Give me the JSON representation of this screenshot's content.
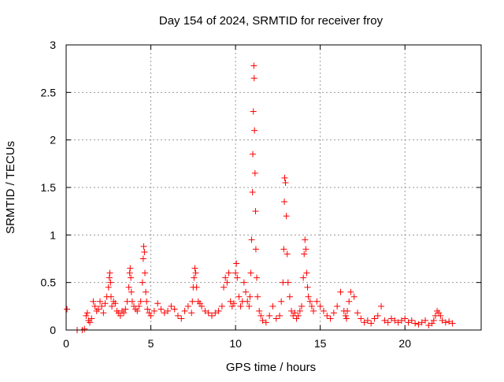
{
  "chart_data": {
    "type": "scatter",
    "title": "Day 154 of 2024, SRMTID for receiver froy",
    "xlabel": "GPS time / hours",
    "ylabel": "SRMTID / TECUs",
    "xlim": [
      0,
      24.5
    ],
    "ylim": [
      0,
      3
    ],
    "xticks": [
      0,
      5,
      10,
      15,
      20
    ],
    "yticks": [
      0,
      0.5,
      1,
      1.5,
      2,
      2.5,
      3
    ],
    "ytick_labels": [
      "0",
      "0.5",
      "1",
      "1.5",
      "2",
      "2.5",
      "3"
    ],
    "grid": true,
    "marker": "+",
    "marker_color": "#ff0000",
    "series": [
      {
        "name": "SRMTID",
        "x": [
          0.05,
          0.65,
          0.95,
          1.08,
          1.18,
          1.25,
          1.32,
          1.4,
          1.5,
          1.6,
          1.7,
          1.8,
          1.9,
          2.0,
          2.1,
          2.2,
          2.3,
          2.4,
          2.5,
          2.55,
          2.58,
          2.62,
          2.65,
          2.7,
          2.8,
          2.9,
          3.0,
          3.1,
          3.2,
          3.3,
          3.4,
          3.5,
          3.6,
          3.7,
          3.75,
          3.78,
          3.82,
          3.85,
          3.9,
          4.0,
          4.1,
          4.2,
          4.3,
          4.4,
          4.5,
          4.55,
          4.58,
          4.62,
          4.65,
          4.7,
          4.75,
          4.8,
          4.9,
          5.0,
          5.2,
          5.4,
          5.6,
          5.8,
          6.0,
          6.2,
          6.4,
          6.6,
          6.8,
          7.0,
          7.2,
          7.4,
          7.45,
          7.5,
          7.55,
          7.6,
          7.65,
          7.7,
          7.8,
          7.9,
          8.0,
          8.2,
          8.4,
          8.6,
          8.8,
          9.0,
          9.2,
          9.3,
          9.4,
          9.5,
          9.6,
          9.7,
          9.8,
          9.9,
          10.0,
          10.05,
          10.1,
          10.2,
          10.3,
          10.4,
          10.5,
          10.6,
          10.7,
          10.8,
          10.85,
          10.9,
          10.95,
          11.0,
          11.02,
          11.05,
          11.08,
          11.1,
          11.12,
          11.15,
          11.18,
          11.2,
          11.25,
          11.3,
          11.4,
          11.5,
          11.6,
          11.8,
          12.0,
          12.2,
          12.4,
          12.6,
          12.7,
          12.8,
          12.85,
          12.88,
          12.9,
          12.95,
          13.0,
          13.05,
          13.1,
          13.2,
          13.3,
          13.4,
          13.5,
          13.6,
          13.7,
          13.8,
          13.9,
          14.0,
          14.05,
          14.1,
          14.15,
          14.2,
          14.25,
          14.3,
          14.4,
          14.5,
          14.6,
          14.8,
          15.0,
          15.2,
          15.4,
          15.6,
          15.8,
          16.0,
          16.2,
          16.4,
          16.5,
          16.55,
          16.6,
          16.7,
          16.8,
          17.0,
          17.2,
          17.4,
          17.6,
          17.8,
          18.0,
          18.2,
          18.4,
          18.6,
          18.8,
          19.0,
          19.2,
          19.4,
          19.6,
          19.8,
          20.0,
          20.2,
          20.4,
          20.6,
          20.8,
          21.0,
          21.2,
          21.4,
          21.6,
          21.7,
          21.8,
          21.9,
          22.0,
          22.1,
          22.2,
          22.4,
          22.6,
          22.8
        ],
        "y": [
          0.22,
          0.0,
          0.0,
          0.01,
          0.15,
          0.18,
          0.1,
          0.08,
          0.12,
          0.3,
          0.25,
          0.2,
          0.22,
          0.3,
          0.25,
          0.18,
          0.28,
          0.35,
          0.45,
          0.55,
          0.6,
          0.5,
          0.35,
          0.25,
          0.3,
          0.28,
          0.2,
          0.18,
          0.15,
          0.2,
          0.18,
          0.22,
          0.3,
          0.45,
          0.6,
          0.65,
          0.55,
          0.4,
          0.3,
          0.25,
          0.22,
          0.2,
          0.25,
          0.3,
          0.5,
          0.75,
          0.88,
          0.82,
          0.6,
          0.4,
          0.3,
          0.22,
          0.18,
          0.15,
          0.2,
          0.28,
          0.22,
          0.18,
          0.2,
          0.25,
          0.22,
          0.15,
          0.12,
          0.2,
          0.25,
          0.18,
          0.3,
          0.45,
          0.55,
          0.65,
          0.6,
          0.45,
          0.3,
          0.28,
          0.25,
          0.2,
          0.18,
          0.15,
          0.18,
          0.2,
          0.25,
          0.45,
          0.55,
          0.5,
          0.6,
          0.3,
          0.25,
          0.28,
          0.6,
          0.7,
          0.55,
          0.35,
          0.25,
          0.3,
          0.5,
          0.4,
          0.3,
          0.25,
          0.35,
          0.6,
          0.95,
          1.45,
          1.85,
          2.3,
          2.78,
          2.65,
          2.1,
          1.65,
          1.25,
          0.85,
          0.55,
          0.35,
          0.2,
          0.15,
          0.1,
          0.08,
          0.15,
          0.25,
          0.12,
          0.15,
          0.3,
          0.5,
          0.85,
          1.35,
          1.6,
          1.55,
          1.2,
          0.8,
          0.5,
          0.35,
          0.2,
          0.15,
          0.18,
          0.12,
          0.15,
          0.2,
          0.25,
          0.55,
          0.8,
          0.95,
          0.85,
          0.6,
          0.45,
          0.35,
          0.3,
          0.25,
          0.2,
          0.3,
          0.25,
          0.2,
          0.15,
          0.12,
          0.18,
          0.25,
          0.4,
          0.2,
          0.15,
          0.12,
          0.2,
          0.3,
          0.4,
          0.35,
          0.18,
          0.12,
          0.08,
          0.1,
          0.07,
          0.12,
          0.15,
          0.25,
          0.1,
          0.08,
          0.12,
          0.1,
          0.08,
          0.1,
          0.12,
          0.08,
          0.1,
          0.07,
          0.06,
          0.08,
          0.1,
          0.05,
          0.07,
          0.1,
          0.15,
          0.2,
          0.18,
          0.15,
          0.1,
          0.08,
          0.09,
          0.07
        ]
      }
    ]
  }
}
